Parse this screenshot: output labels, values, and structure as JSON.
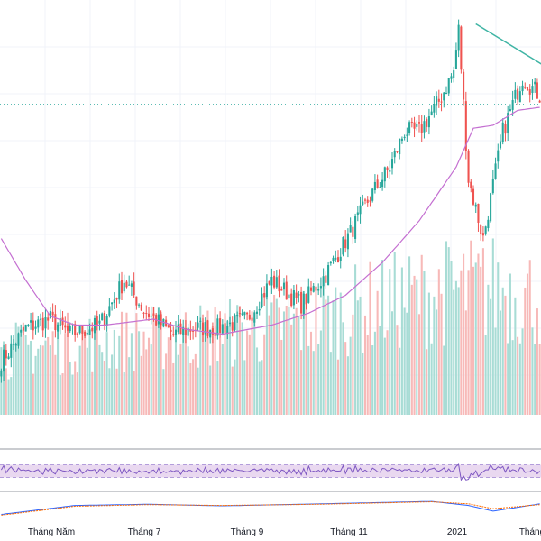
{
  "colors": {
    "up": "#26a69a",
    "down": "#ef5350",
    "volume_up": "#a8dcd5",
    "volume_down": "#f7b9b8",
    "ma_line": "#c46fd1",
    "trend_line": "#3fb4a4",
    "price_line": "#26a69a",
    "rsi_line": "#7e57c2",
    "rsi_band": "#e9d8f0",
    "macd_line": "#2962ff",
    "signal_line": "#ff6d00",
    "grid": "#f0f3fa",
    "separator": "#9598a1"
  },
  "chart_data": [
    {
      "type": "candlestick",
      "panel": "price",
      "title": "",
      "xlabel": "",
      "ylabel": "",
      "x_ticks": [
        "Tháng Năm",
        "Tháng 7",
        "Tháng 9",
        "Tháng 11",
        "2021",
        "Tháng"
      ],
      "y_tick_labels_visible": false,
      "grid": true,
      "price_line_style": "dotted",
      "anchors": [
        {
          "i": 0,
          "v": 49.5
        },
        {
          "i": 10,
          "v": 55
        },
        {
          "i": 20,
          "v": 56.5
        },
        {
          "i": 28,
          "v": 54
        },
        {
          "i": 40,
          "v": 55.5
        },
        {
          "i": 50,
          "v": 63
        },
        {
          "i": 58,
          "v": 58
        },
        {
          "i": 70,
          "v": 54
        },
        {
          "i": 78,
          "v": 55
        },
        {
          "i": 88,
          "v": 55
        },
        {
          "i": 100,
          "v": 56.5
        },
        {
          "i": 110,
          "v": 63
        },
        {
          "i": 122,
          "v": 59
        },
        {
          "i": 132,
          "v": 64
        },
        {
          "i": 142,
          "v": 71
        },
        {
          "i": 150,
          "v": 77
        },
        {
          "i": 158,
          "v": 82
        },
        {
          "i": 164,
          "v": 88
        },
        {
          "i": 170,
          "v": 88
        },
        {
          "i": 178,
          "v": 93
        },
        {
          "i": 184,
          "v": 98
        },
        {
          "i": 186,
          "v": 105
        },
        {
          "i": 190,
          "v": 80
        },
        {
          "i": 196,
          "v": 70
        },
        {
          "i": 204,
          "v": 88
        },
        {
          "i": 212,
          "v": 97
        },
        {
          "i": 219,
          "v": 94
        }
      ],
      "moving_average": {
        "points": [
          {
            "i": 0,
            "v": 70
          },
          {
            "i": 10,
            "v": 63
          },
          {
            "i": 20,
            "v": 57
          },
          {
            "i": 30,
            "v": 55.5
          },
          {
            "i": 42,
            "v": 55.5
          },
          {
            "i": 52,
            "v": 56
          },
          {
            "i": 62,
            "v": 56.5
          },
          {
            "i": 75,
            "v": 54.8
          },
          {
            "i": 90,
            "v": 54
          },
          {
            "i": 110,
            "v": 55.5
          },
          {
            "i": 125,
            "v": 57.5
          },
          {
            "i": 140,
            "v": 60.5
          },
          {
            "i": 155,
            "v": 66
          },
          {
            "i": 170,
            "v": 73
          },
          {
            "i": 185,
            "v": 82
          },
          {
            "i": 192,
            "v": 88.5
          },
          {
            "i": 200,
            "v": 89
          },
          {
            "i": 210,
            "v": 91.5
          },
          {
            "i": 219,
            "v": 92
          }
        ]
      },
      "trend_line": [
        {
          "i": 193,
          "v": 106
        },
        {
          "i": 219,
          "v": 98.5
        }
      ],
      "price_line_value": 92.5,
      "ylim": [
        45,
        110
      ],
      "n_bars": 220
    },
    {
      "type": "bar",
      "panel": "volume",
      "title": "",
      "levels": [
        {
          "i": 0,
          "v": 0.35
        },
        {
          "i": 30,
          "v": 0.4
        },
        {
          "i": 60,
          "v": 0.42
        },
        {
          "i": 90,
          "v": 0.45
        },
        {
          "i": 120,
          "v": 0.5
        },
        {
          "i": 150,
          "v": 0.6
        },
        {
          "i": 180,
          "v": 0.68
        },
        {
          "i": 200,
          "v": 0.7
        },
        {
          "i": 219,
          "v": 0.65
        }
      ]
    },
    {
      "type": "line",
      "panel": "rsi",
      "title": "",
      "band": [
        30,
        70
      ],
      "ylim": [
        0,
        100
      ],
      "base": 50
    },
    {
      "type": "line",
      "panel": "macd",
      "title": "",
      "series": [
        {
          "values": [
            {
              "i": 0,
              "v": -1.0
            },
            {
              "i": 30,
              "v": 0.1
            },
            {
              "i": 60,
              "v": 0.25
            },
            {
              "i": 90,
              "v": 0.05
            },
            {
              "i": 130,
              "v": 0.3
            },
            {
              "i": 175,
              "v": 0.6
            },
            {
              "i": 190,
              "v": 0.1
            },
            {
              "i": 200,
              "v": -0.6
            },
            {
              "i": 219,
              "v": 0.3
            }
          ]
        },
        {
          "values": [
            {
              "i": 0,
              "v": -1.1
            },
            {
              "i": 30,
              "v": 0.0
            },
            {
              "i": 60,
              "v": 0.2
            },
            {
              "i": 90,
              "v": 0.1
            },
            {
              "i": 130,
              "v": 0.25
            },
            {
              "i": 175,
              "v": 0.55
            },
            {
              "i": 190,
              "v": 0.3
            },
            {
              "i": 200,
              "v": -0.3
            },
            {
              "i": 219,
              "v": 0.2
            }
          ]
        }
      ],
      "ylim": [
        -1.5,
        1.5
      ]
    }
  ]
}
